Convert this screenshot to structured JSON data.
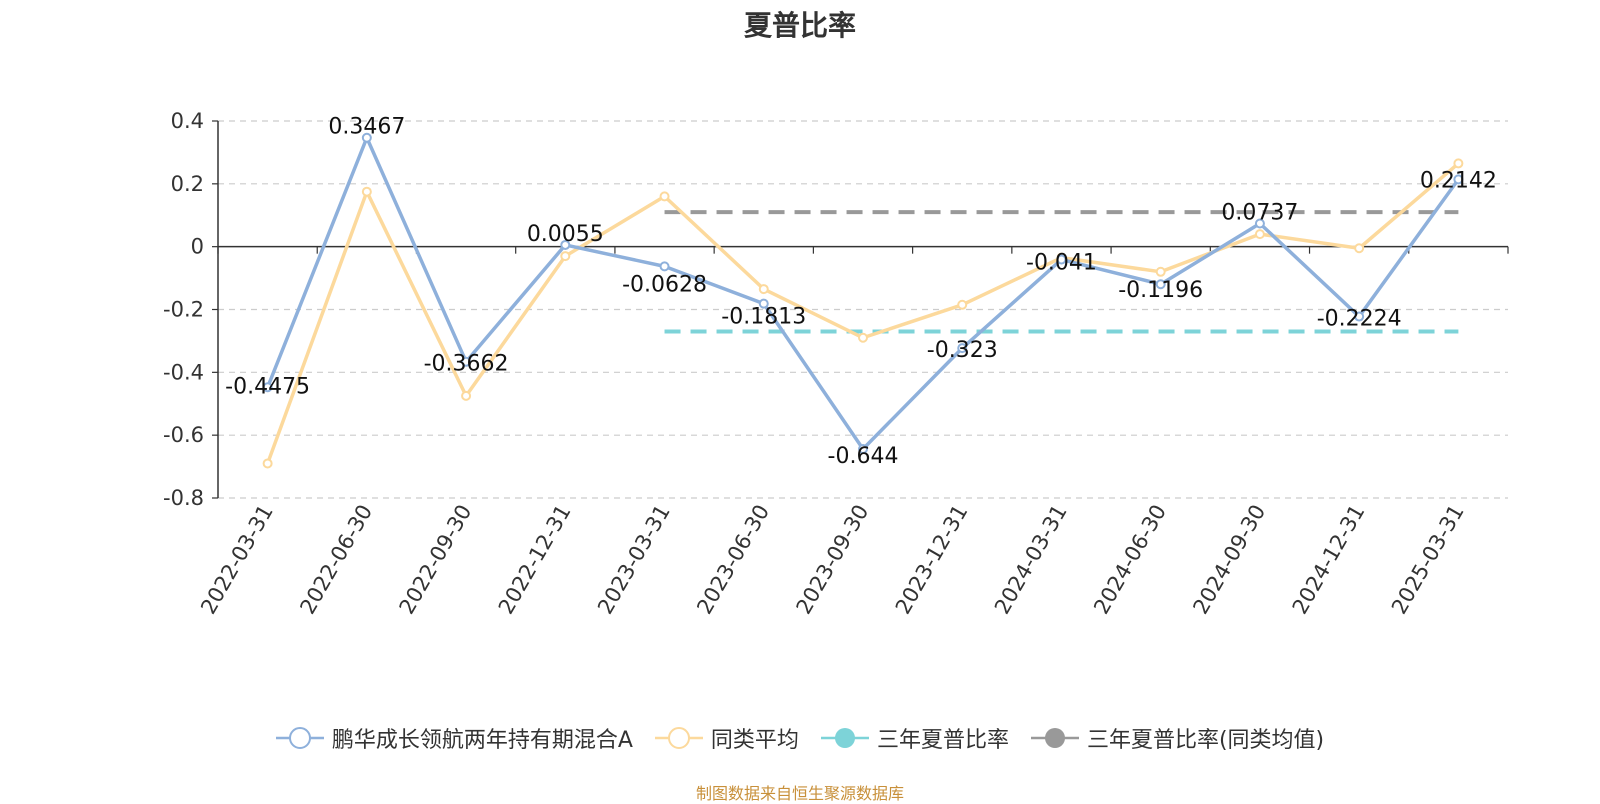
{
  "chart_data": {
    "type": "line",
    "title": "夏普比率",
    "categories": [
      "2022-03-31",
      "2022-06-30",
      "2022-09-30",
      "2022-12-31",
      "2023-03-31",
      "2023-06-30",
      "2023-09-30",
      "2023-12-31",
      "2024-03-31",
      "2024-06-30",
      "2024-09-30",
      "2024-12-31",
      "2025-03-31"
    ],
    "ylim": [
      -0.8,
      0.4
    ],
    "yticks": [
      0.4,
      0.2,
      0,
      -0.2,
      -0.4,
      -0.6,
      -0.8
    ],
    "ytick_labels": [
      "0.4",
      "0.2",
      "0",
      "-0.2",
      "-0.4",
      "-0.6",
      "-0.8"
    ],
    "grid": true,
    "legend_position": "bottom",
    "series": [
      {
        "name": "鹏华成长领航两年持有期混合A",
        "color": "#8eb0db",
        "values": [
          -0.4475,
          0.3467,
          -0.3662,
          0.0055,
          -0.0628,
          -0.1813,
          -0.644,
          -0.323,
          -0.041,
          -0.1196,
          0.0737,
          -0.2224,
          0.2142
        ],
        "labels": [
          "-0.4475",
          "0.3467",
          "-0.3662",
          "0.0055",
          "-0.0628",
          "-0.1813",
          "-0.644",
          "-0.323",
          "-0.041",
          "-0.1196",
          "0.0737",
          "-0.2224",
          "0.2142"
        ]
      },
      {
        "name": "同类平均",
        "color": "#fcd99c",
        "values": [
          -0.69,
          0.175,
          -0.475,
          -0.03,
          0.16,
          -0.135,
          -0.29,
          -0.185,
          -0.035,
          -0.08,
          0.04,
          -0.005,
          0.265
        ]
      },
      {
        "name": "三年夏普比率",
        "color": "#7dd3d8",
        "type": "reference",
        "value": -0.27,
        "from": "2023-03-31",
        "to": "2025-03-31"
      },
      {
        "name": "三年夏普比率(同类均值)",
        "color": "#999999",
        "type": "reference",
        "value": 0.11,
        "from": "2023-03-31",
        "to": "2025-03-31"
      }
    ]
  },
  "source_note": "制图数据来自恒生聚源数据库"
}
